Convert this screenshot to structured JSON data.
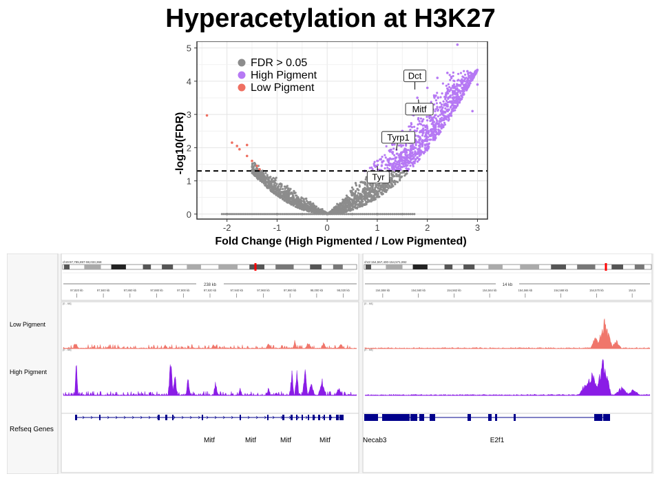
{
  "title": "Hyperacetylation at H3K27",
  "chart_data": {
    "type": "scatter",
    "xlabel": "Fold Change (High Pigmented / Low Pigmented)",
    "ylabel": "-log10(FDR)",
    "xlim": [
      -2.6,
      3.2
    ],
    "ylim": [
      -0.15,
      5.2
    ],
    "x_ticks": [
      "-2",
      "-1",
      "0",
      "1",
      "2",
      "3"
    ],
    "y_ticks": [
      "0",
      "1",
      "2",
      "3",
      "4",
      "5"
    ],
    "grid": true,
    "legend_position": "top-left",
    "threshold_y": 1.3,
    "series": [
      {
        "name": "FDR > 0.05",
        "color": "#8c8c8c",
        "points": [
          [
            -1.4,
            1.1
          ],
          [
            -1.2,
            0.95
          ],
          [
            -1.0,
            0.75
          ],
          [
            -0.8,
            0.58
          ],
          [
            -0.6,
            0.42
          ],
          [
            -0.4,
            0.26
          ],
          [
            -0.2,
            0.12
          ],
          [
            0.0,
            0.0
          ],
          [
            0.2,
            0.15
          ],
          [
            0.4,
            0.33
          ],
          [
            0.6,
            0.56
          ],
          [
            0.8,
            0.85
          ],
          [
            1.0,
            1.15
          ],
          [
            1.2,
            1.3
          ],
          [
            -1.0,
            0.0
          ],
          [
            -0.5,
            0.0
          ],
          [
            0.5,
            0.0
          ],
          [
            1.0,
            0.0
          ],
          [
            1.5,
            0.0
          ],
          [
            -2.0,
            0.0
          ]
        ]
      },
      {
        "name": "High Pigment",
        "color": "#b679f4",
        "points": [
          [
            0.75,
            1.3
          ],
          [
            1.0,
            1.6
          ],
          [
            1.3,
            2.1
          ],
          [
            1.5,
            2.5
          ],
          [
            1.7,
            3.0
          ],
          [
            1.8,
            3.5
          ],
          [
            2.0,
            3.8
          ],
          [
            2.2,
            4.1
          ],
          [
            2.4,
            4.25
          ],
          [
            2.7,
            3.7
          ],
          [
            2.9,
            3.1
          ],
          [
            2.6,
            5.1
          ],
          [
            2.8,
            4.3
          ],
          [
            3.0,
            3.9
          ],
          [
            1.9,
            2.8
          ]
        ]
      },
      {
        "name": "Low Pigment",
        "color": "#ef6f61",
        "points": [
          [
            -2.4,
            2.97
          ],
          [
            -1.9,
            2.15
          ],
          [
            -1.8,
            2.05
          ],
          [
            -1.75,
            1.95
          ],
          [
            -1.6,
            1.75
          ],
          [
            -1.5,
            1.6
          ],
          [
            -1.4,
            1.45
          ],
          [
            -1.35,
            1.35
          ],
          [
            -1.6,
            2.08
          ]
        ]
      }
    ],
    "annotations": [
      {
        "label": "Dct",
        "x": 1.75,
        "y": 3.75
      },
      {
        "label": "Mitf",
        "x": 1.82,
        "y": 3.45
      },
      {
        "label": "Tyrp1",
        "x": 1.38,
        "y": 1.92
      },
      {
        "label": "Tyr",
        "x": 1.0,
        "y": 1.45
      }
    ]
  },
  "browser": {
    "track_labels": {
      "low": "Low Pigment",
      "high": "High Pigment",
      "genes": "Refseq Genes"
    },
    "colors": {
      "low": "#f0766b",
      "high": "#8a1ce6",
      "gene": "#00008b"
    },
    "left": {
      "locus": "chr9:97,795,897-98,033,368",
      "span_label": "238 kb",
      "ticks": [
        "97,820 kb",
        "97,840 kb",
        "97,860 kb",
        "97,880 kb",
        "97,900 kb",
        "97,920 kb",
        "97,940 kb",
        "97,960 kb",
        "97,980 kb",
        "98,000 kb",
        "98,020 kb"
      ],
      "scale": "[0 - 68]",
      "genes": [
        "Mitf",
        "Mitf",
        "Mitf",
        "Mitf"
      ]
    },
    "right": {
      "locus": "chr2:154,557,400-154,571,892",
      "span_label": "14 kb",
      "ticks": [
        "154,558 kb",
        "154,560 kb",
        "154,562 kb",
        "154,564 kb",
        "154,566 kb",
        "154,568 kb",
        "154,570 kb",
        "154,5"
      ],
      "scale": "[0 - 68]",
      "genes": [
        "Necab3",
        "E2f1"
      ]
    }
  }
}
